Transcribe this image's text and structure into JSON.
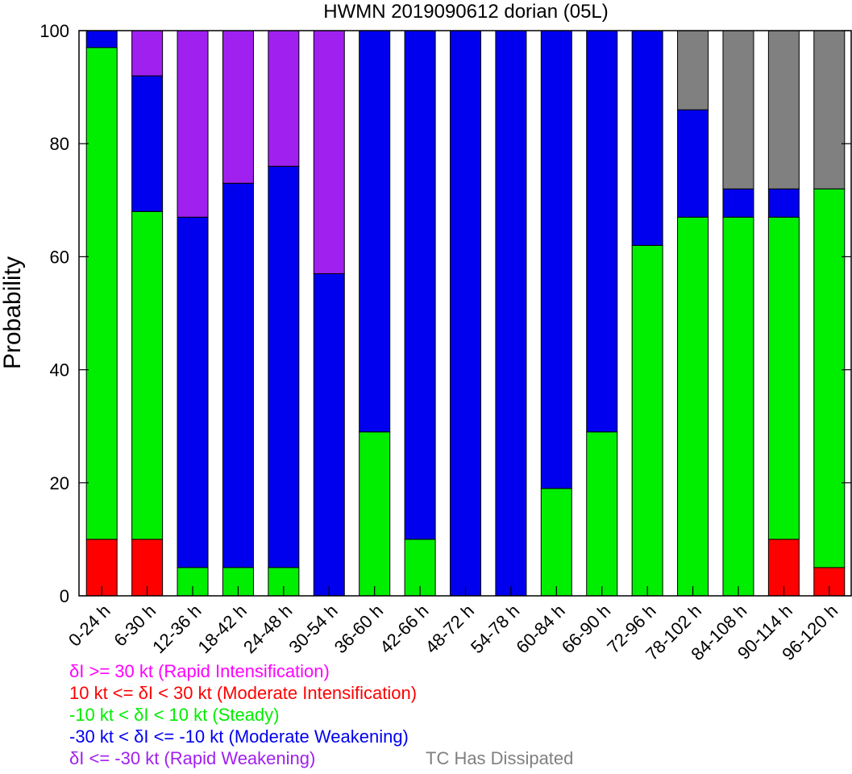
{
  "chart_data": {
    "type": "bar",
    "stacked": true,
    "title": "HWMN 2019090612 dorian (05L)",
    "xlabel": "",
    "ylabel": "Probability",
    "ylim": [
      0,
      100
    ],
    "yticks": [
      0,
      20,
      40,
      60,
      80,
      100
    ],
    "grid": false,
    "categories": [
      "0-24 h",
      "6-30 h",
      "12-36 h",
      "18-42 h",
      "24-48 h",
      "30-54 h",
      "36-60 h",
      "42-66 h",
      "48-72 h",
      "54-78 h",
      "60-84 h",
      "66-90 h",
      "72-96 h",
      "78-102 h",
      "84-108 h",
      "90-114 h",
      "96-120 h"
    ],
    "series": [
      {
        "key": "moderate_intensification",
        "color": "#ff0000",
        "values": [
          10,
          10,
          0,
          0,
          0,
          0,
          0,
          0,
          0,
          0,
          0,
          0,
          0,
          0,
          0,
          10,
          5
        ]
      },
      {
        "key": "steady",
        "color": "#00ee00",
        "values": [
          87,
          58,
          5,
          5,
          5,
          0,
          29,
          10,
          0,
          0,
          19,
          29,
          62,
          67,
          67,
          57,
          67
        ]
      },
      {
        "key": "moderate_weakening",
        "color": "#0000ee",
        "values": [
          3,
          24,
          62,
          68,
          71,
          57,
          71,
          90,
          100,
          100,
          81,
          71,
          38,
          19,
          5,
          5,
          0
        ]
      },
      {
        "key": "rapid_weakening",
        "color": "#a020f0",
        "values": [
          0,
          8,
          33,
          27,
          24,
          43,
          0,
          0,
          0,
          0,
          0,
          0,
          0,
          0,
          0,
          0,
          0
        ]
      },
      {
        "key": "dissipated",
        "color": "#808080",
        "values": [
          0,
          0,
          0,
          0,
          0,
          0,
          0,
          0,
          0,
          0,
          0,
          0,
          0,
          14,
          28,
          28,
          28
        ]
      }
    ]
  },
  "legend": [
    {
      "text": "δI >= 30 kt (Rapid Intensification)",
      "color": "#ff00ff"
    },
    {
      "text": "10 kt <= δI < 30 kt (Moderate Intensification)",
      "color": "#ff0000"
    },
    {
      "text": "-10 kt < δI < 10 kt (Steady)",
      "color": "#00ee00"
    },
    {
      "text": "-30 kt < δI <= -10 kt (Moderate Weakening)",
      "color": "#0000ee"
    },
    {
      "text": "δI <= -30 kt (Rapid Weakening)",
      "color": "#a020f0"
    }
  ],
  "legend_extra": {
    "text": "TC Has Dissipated",
    "color": "#808080"
  }
}
